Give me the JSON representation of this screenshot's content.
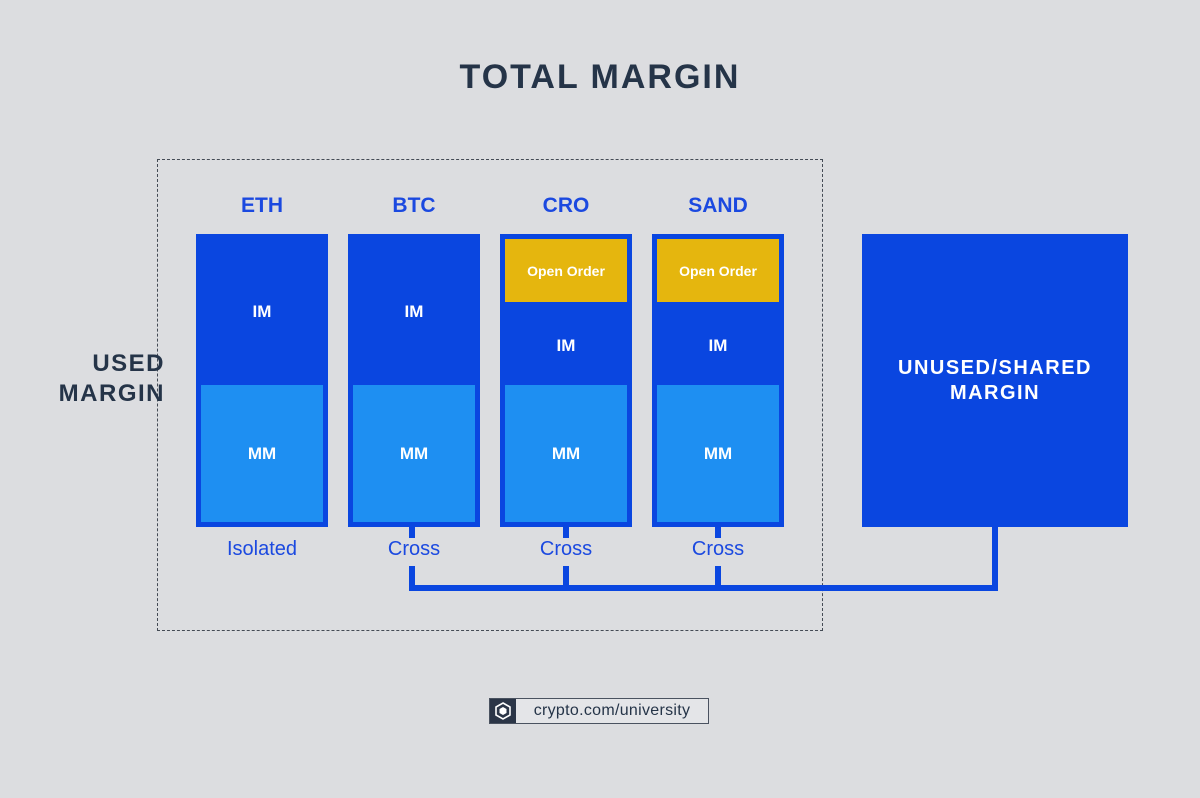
{
  "title": "TOTAL MARGIN",
  "used_margin": {
    "line1": "USED",
    "line2": "MARGIN"
  },
  "columns": [
    {
      "coin": "ETH",
      "im": "IM",
      "mm": "MM",
      "open_order": null,
      "mode": "Isolated"
    },
    {
      "coin": "BTC",
      "im": "IM",
      "mm": "MM",
      "open_order": null,
      "mode": "Cross"
    },
    {
      "coin": "CRO",
      "im": "IM",
      "mm": "MM",
      "open_order": "Open Order",
      "mode": "Cross"
    },
    {
      "coin": "SAND",
      "im": "IM",
      "mm": "MM",
      "open_order": "Open Order",
      "mode": "Cross"
    }
  ],
  "unused": {
    "line1": "UNUSED/SHARED",
    "line2": "MARGIN"
  },
  "footer": {
    "text": "crypto.com/university",
    "logo_icon": "crypto-com-logo-icon"
  },
  "colors": {
    "background": "#dcdde0",
    "im_blue": "#0a46e0",
    "mm_blue": "#1e8ff2",
    "open_order_yellow": "#e5b60e",
    "label_blue": "#1b49e0",
    "heading_navy": "#253448"
  }
}
